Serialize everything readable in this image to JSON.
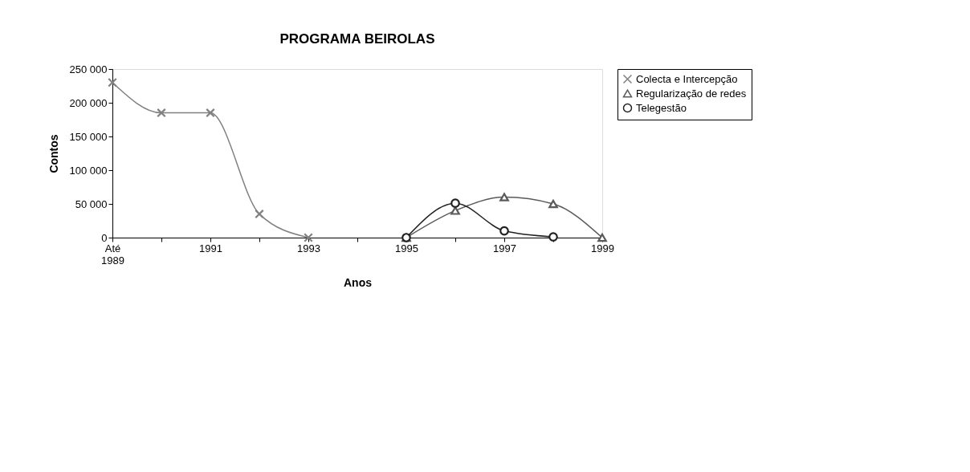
{
  "chart_data": {
    "type": "line",
    "title": "PROGRAMA BEIROLAS",
    "xlabel": "Anos",
    "ylabel": "Contos",
    "categories": [
      "Até 1989",
      null,
      "1991",
      null,
      "1993",
      null,
      "1995",
      null,
      "1997",
      null,
      "1999"
    ],
    "series": [
      {
        "name": "Colecta e Intercepção",
        "color": "#808080",
        "marker": "cross",
        "values": [
          230000,
          185000,
          185000,
          35000,
          0,
          null,
          null,
          null,
          null,
          null,
          null
        ]
      },
      {
        "name": "Regularização de redes",
        "color": "#5a5a5a",
        "marker": "triangle",
        "values": [
          null,
          null,
          null,
          null,
          null,
          null,
          0,
          40000,
          60000,
          50000,
          0
        ]
      },
      {
        "name": "Telegestão",
        "color": "#222222",
        "marker": "circle",
        "values": [
          null,
          null,
          null,
          null,
          null,
          null,
          0,
          51000,
          10000,
          1000,
          null
        ]
      }
    ],
    "ylim": [
      0,
      250000
    ],
    "yticks": [
      {
        "value": 0,
        "label": "0"
      },
      {
        "value": 50000,
        "label": "50 000"
      },
      {
        "value": 100000,
        "label": "100 000"
      },
      {
        "value": 150000,
        "label": "150 000"
      },
      {
        "value": 200000,
        "label": "200 000"
      },
      {
        "value": 250000,
        "label": "250 000"
      }
    ],
    "grid": false,
    "legend": "right",
    "line_style": "solid"
  }
}
